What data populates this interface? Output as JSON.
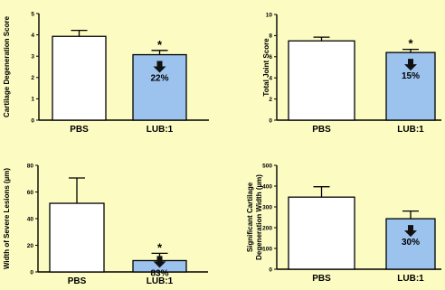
{
  "colors": {
    "background": "#fbfbc2",
    "pbs_bar": "#ffffff",
    "lub_bar": "#9cc3ee",
    "axis": "#000000"
  },
  "chart_data": [
    {
      "type": "bar",
      "ylabel": "Cartilage Degeneration Score",
      "ylim": [
        0,
        5
      ],
      "yticks": [
        0,
        1,
        2,
        3,
        4,
        5
      ],
      "categories": [
        "PBS",
        "LUB:1"
      ],
      "values": [
        3.93,
        3.07
      ],
      "errors": [
        0.28,
        0.2
      ],
      "significance": [
        "",
        "*"
      ],
      "reduction": [
        "",
        "22%"
      ],
      "grid": false
    },
    {
      "type": "bar",
      "ylabel": "Total Joint Score",
      "ylim": [
        0,
        10
      ],
      "yticks": [
        0,
        2,
        4,
        6,
        8,
        10
      ],
      "categories": [
        "PBS",
        "LUB:1"
      ],
      "values": [
        7.5,
        6.4
      ],
      "errors": [
        0.35,
        0.3
      ],
      "significance": [
        "",
        "*"
      ],
      "reduction": [
        "",
        "15%"
      ],
      "grid": false
    },
    {
      "type": "bar",
      "ylabel": "Width of Severe Lesions (µm)",
      "ylim": [
        0,
        80
      ],
      "yticks": [
        0,
        20,
        40,
        60,
        80
      ],
      "categories": [
        "PBS",
        "LUB:1"
      ],
      "values": [
        51.5,
        8.5
      ],
      "errors": [
        19,
        5.5
      ],
      "significance": [
        "",
        "*"
      ],
      "reduction": [
        "",
        "83%"
      ],
      "grid": false
    },
    {
      "type": "bar",
      "ylabel": "Significant Cartilage Degeneration Width (µm)",
      "ylabel_lines": [
        "Significant Cartilage",
        "Degeneration Width (µm)"
      ],
      "ylim": [
        0,
        500
      ],
      "yticks": [
        0,
        100,
        200,
        300,
        400,
        500
      ],
      "categories": [
        "PBS",
        "LUB:1"
      ],
      "values": [
        347,
        243
      ],
      "errors": [
        50,
        37
      ],
      "significance": [
        "",
        ""
      ],
      "reduction": [
        "",
        "30%"
      ],
      "grid": false
    }
  ]
}
